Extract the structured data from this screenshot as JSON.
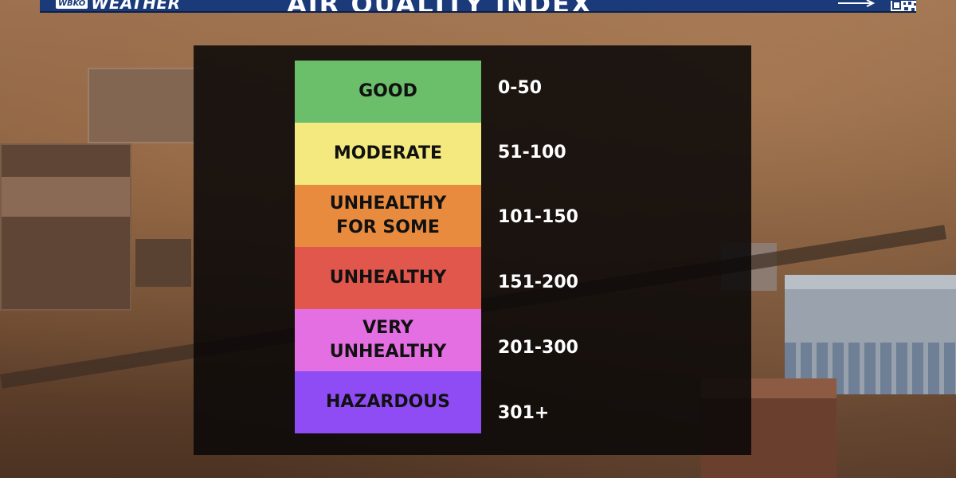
{
  "header": {
    "logo_badge": "WBKO",
    "logo_text": "WEATHER",
    "title": "AIR QUALITY INDEX"
  },
  "colors": {
    "good": "#6bbe6a",
    "moderate": "#f4e97e",
    "unhealthy_for_some": "#e88b3e",
    "unhealthy": "#e2574c",
    "very_unhealthy": "#e36fe3",
    "hazardous": "#8f4cf5"
  },
  "aqi": {
    "levels": [
      {
        "label": "GOOD",
        "range": "0-50"
      },
      {
        "label": "MODERATE",
        "range": "51-100"
      },
      {
        "label": "UNHEALTHY\nFOR SOME",
        "range": "101-150"
      },
      {
        "label": "UNHEALTHY",
        "range": "151-200"
      },
      {
        "label": "VERY\nUNHEALTHY",
        "range": "201-300"
      },
      {
        "label": "HAZARDOUS",
        "range": "301+"
      }
    ]
  },
  "icons": {
    "arrow": "arrow-right-icon",
    "qr": "qr-code-icon"
  }
}
